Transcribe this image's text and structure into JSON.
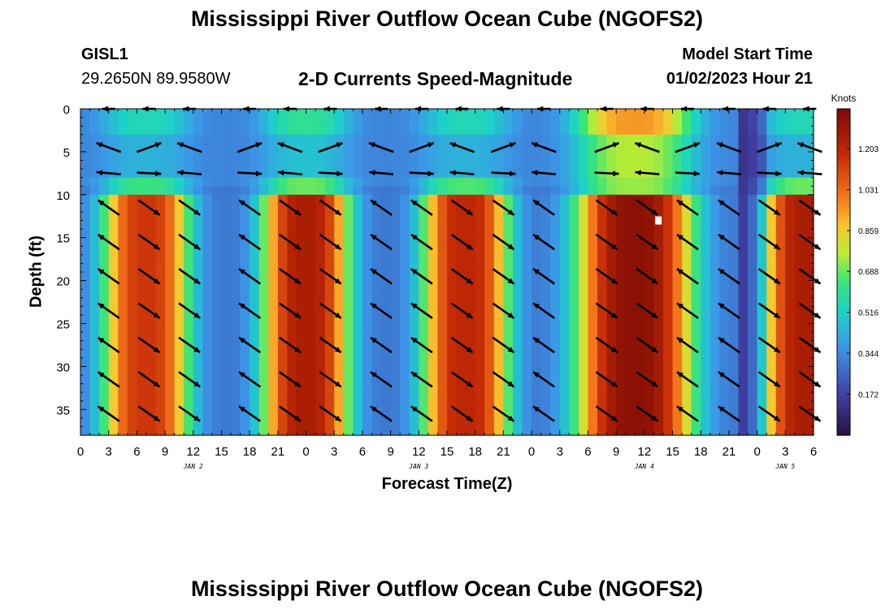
{
  "header": {
    "title_top": "Mississippi River Outflow Ocean Cube (NGOFS2)",
    "title_bottom": "Mississippi River Outflow Ocean Cube (NGOFS2)",
    "station_id": "GISL1",
    "station_coords": "29.2650N  89.9580W",
    "plot_title": "2-D Currents Speed-Magnitude",
    "model_start_label": "Model Start Time",
    "model_start_value": "01/02/2023 Hour 21"
  },
  "chart_data": {
    "type": "heatmap",
    "title": "2-D Currents Speed-Magnitude",
    "xlabel": "Forecast Time(Z)",
    "ylabel": "Depth (ft)",
    "x_range_hours": [
      0,
      78
    ],
    "y_range_ft": [
      0,
      38
    ],
    "x_tick_labels": [
      "0",
      "3",
      "6",
      "9",
      "12",
      "15",
      "18",
      "21",
      "0",
      "3",
      "6",
      "9",
      "12",
      "15",
      "18",
      "21",
      "0",
      "3",
      "6",
      "9",
      "12",
      "15",
      "18",
      "21",
      "0",
      "3",
      "6"
    ],
    "y_ticks": [
      0,
      5,
      10,
      15,
      20,
      25,
      30,
      35
    ],
    "date_labels": [
      {
        "label": "JAN 2",
        "hour": 12
      },
      {
        "label": "JAN 3",
        "hour": 36
      },
      {
        "label": "JAN 4",
        "hour": 60
      },
      {
        "label": "JAN 5",
        "hour": 75
      }
    ],
    "colorbar": {
      "title": "Knots",
      "ticks": [
        "0.172",
        "0.344",
        "0.516",
        "0.688",
        "0.859",
        "1.031",
        "1.203"
      ],
      "range": [
        0.0,
        1.37
      ]
    },
    "speed_peaks_knots": [
      {
        "center_hour": 7,
        "width_hours": 4.5,
        "deep_peak": 1.15,
        "shallow_peak": 0.55
      },
      {
        "center_hour": 24,
        "width_hours": 4.5,
        "deep_peak": 1.25,
        "shallow_peak": 0.6
      },
      {
        "center_hour": 41,
        "width_hours": 4.5,
        "deep_peak": 1.2,
        "shallow_peak": 0.55
      },
      {
        "center_hour": 59,
        "width_hours": 6.0,
        "deep_peak": 1.33,
        "shallow_peak": 0.95
      },
      {
        "center_hour": 77,
        "width_hours": 4.2,
        "deep_peak": 1.25,
        "shallow_peak": 0.55
      }
    ],
    "arrow_rows_ft": [
      0,
      4.5,
      7.5,
      11.5,
      15.5,
      19.5,
      23.5,
      27.5,
      31.5,
      35.5
    ],
    "arrow_columns_hours": [
      3,
      7.3,
      11.6,
      18,
      22.3,
      26.6,
      32,
      36.3,
      40.6,
      45,
      49.3,
      56,
      60.3,
      64.6,
      69,
      73.3,
      77.6
    ],
    "marker": {
      "hour": 61.5,
      "depth_ft": 13
    }
  }
}
